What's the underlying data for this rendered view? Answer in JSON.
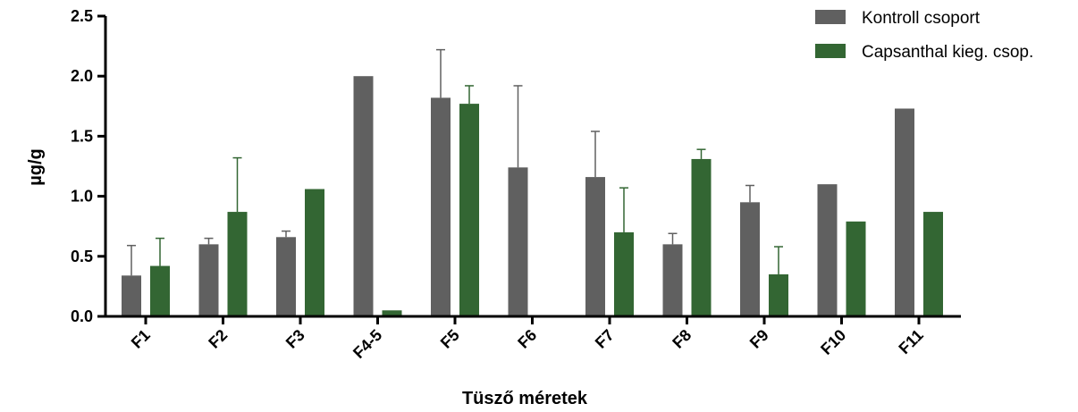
{
  "chart_data": {
    "type": "bar",
    "title": "",
    "xlabel": "Tüsző méretek",
    "ylabel": "µg/g",
    "ylim": [
      0,
      2.5
    ],
    "yticks": [
      "0.0",
      "0.5",
      "1.0",
      "1.5",
      "2.0",
      "2.5"
    ],
    "categories": [
      "F1",
      "F2",
      "F3",
      "F4-5",
      "F5",
      "F6",
      "F7",
      "F8",
      "F9",
      "F10",
      "F11"
    ],
    "series": [
      {
        "name": "Kontroll csoport",
        "color": "#606060",
        "values": [
          0.34,
          0.6,
          0.66,
          2.0,
          1.82,
          1.24,
          1.16,
          0.6,
          0.95,
          1.1,
          1.73
        ],
        "errors": [
          0.25,
          0.05,
          0.05,
          0,
          0.4,
          0.68,
          0.38,
          0.09,
          0.14,
          0,
          0
        ]
      },
      {
        "name": "Capsanthal kieg. csop.",
        "color": "#336633",
        "values": [
          0.42,
          0.87,
          1.06,
          0.05,
          1.77,
          0,
          0.7,
          1.31,
          0.35,
          0.79,
          0.87
        ],
        "errors": [
          0.23,
          0.45,
          0,
          0,
          0.15,
          0,
          0.37,
          0.08,
          0.23,
          0,
          0
        ]
      }
    ],
    "legend_position": "top-right",
    "grid": false
  }
}
